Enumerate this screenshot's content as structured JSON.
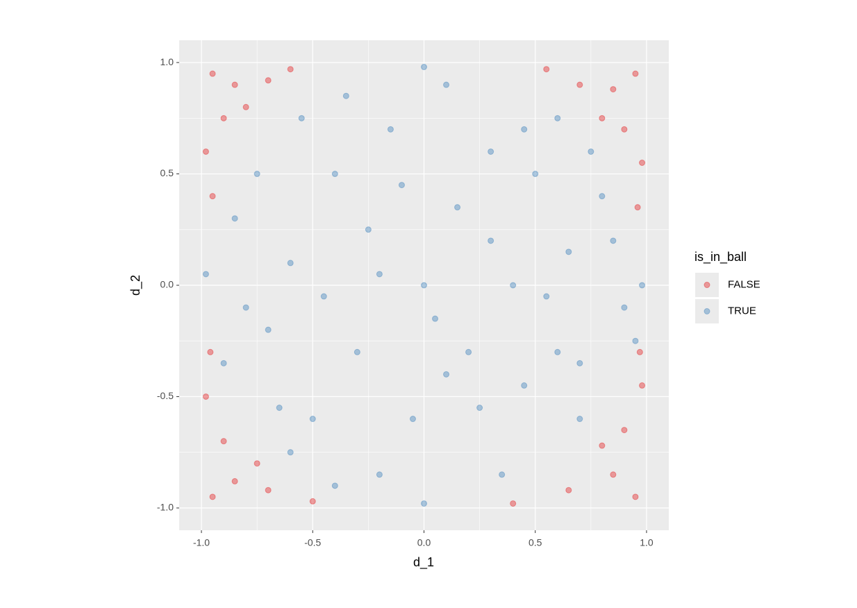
{
  "chart_data": {
    "type": "scatter",
    "x_label": "d_1",
    "y_label": "d_2",
    "legend_title": "is_in_ball",
    "legend_position": "right",
    "grid": true,
    "point_alpha": 0.4,
    "xlim": [
      -1.1,
      1.1
    ],
    "ylim": [
      -1.1,
      1.1
    ],
    "xticks": [
      {
        "value": -1,
        "label": "-1.0"
      },
      -0.5,
      {
        "value": 0,
        "label": "0.0"
      },
      0.5,
      {
        "value": 1,
        "label": "1.0"
      }
    ],
    "yticks": [
      {
        "value": -1,
        "label": "-1.0"
      },
      -0.5,
      {
        "value": 0,
        "label": "0.0"
      },
      0.5,
      {
        "value": 1,
        "label": "1.0"
      }
    ],
    "series": [
      {
        "name": "FALSE",
        "color": "#e41a1c",
        "x": [
          -0.95,
          -0.85,
          -0.9,
          -0.7,
          -0.98,
          -0.8,
          -0.6,
          -0.95,
          0.95,
          0.85,
          0.9,
          0.7,
          0.98,
          0.8,
          0.55,
          0.96,
          -0.95,
          -0.85,
          -0.9,
          -0.7,
          -0.98,
          -0.75,
          -0.5,
          -0.96,
          0.95,
          0.85,
          0.9,
          0.65,
          0.98,
          0.8,
          0.4,
          0.97
        ],
        "values": [
          0.95,
          0.9,
          0.75,
          0.92,
          0.6,
          0.8,
          0.97,
          0.4,
          0.95,
          0.88,
          0.7,
          0.9,
          0.55,
          0.75,
          0.97,
          0.35,
          -0.95,
          -0.88,
          -0.7,
          -0.92,
          -0.5,
          -0.8,
          -0.97,
          -0.3,
          -0.95,
          -0.85,
          -0.65,
          -0.92,
          -0.45,
          -0.72,
          -0.98,
          -0.3
        ]
      },
      {
        "name": "TRUE",
        "color": "#377eb8",
        "x": [
          0,
          0.3,
          -0.4,
          0.6,
          -0.7,
          0.1,
          -0.2,
          0.8,
          -0.5,
          0.45,
          -0.85,
          0.9,
          -0.1,
          0.25,
          -0.6,
          0.65,
          -0.3,
          0.05,
          0.5,
          -0.55,
          0.35,
          -0.9,
          0.7,
          -0.15,
          0.15,
          -0.45,
          0.85,
          -0.75,
          0.2,
          -0.05,
          0.55,
          -0.25,
          0.4,
          -0.65,
          0.75,
          -0.35,
          0,
          0,
          0.98,
          -0.98,
          0.6,
          -0.6,
          0.3,
          -0.8,
          0.1,
          -0.4,
          0.45,
          0.95,
          -0.2,
          0.7
        ],
        "values": [
          0,
          0.2,
          0.5,
          -0.3,
          -0.2,
          0.9,
          -0.85,
          0.4,
          -0.6,
          0.7,
          0.3,
          -0.1,
          0.45,
          -0.55,
          0.1,
          0.15,
          -0.3,
          -0.15,
          0.5,
          0.75,
          -0.85,
          -0.35,
          -0.6,
          0.7,
          0.35,
          -0.05,
          0.2,
          0.5,
          -0.3,
          -0.6,
          -0.05,
          0.25,
          0,
          -0.55,
          0.6,
          0.85,
          0.98,
          -0.98,
          0,
          0.05,
          0.75,
          -0.75,
          0.6,
          -0.1,
          -0.4,
          -0.9,
          -0.45,
          -0.25,
          0.05,
          -0.35
        ]
      }
    ]
  }
}
